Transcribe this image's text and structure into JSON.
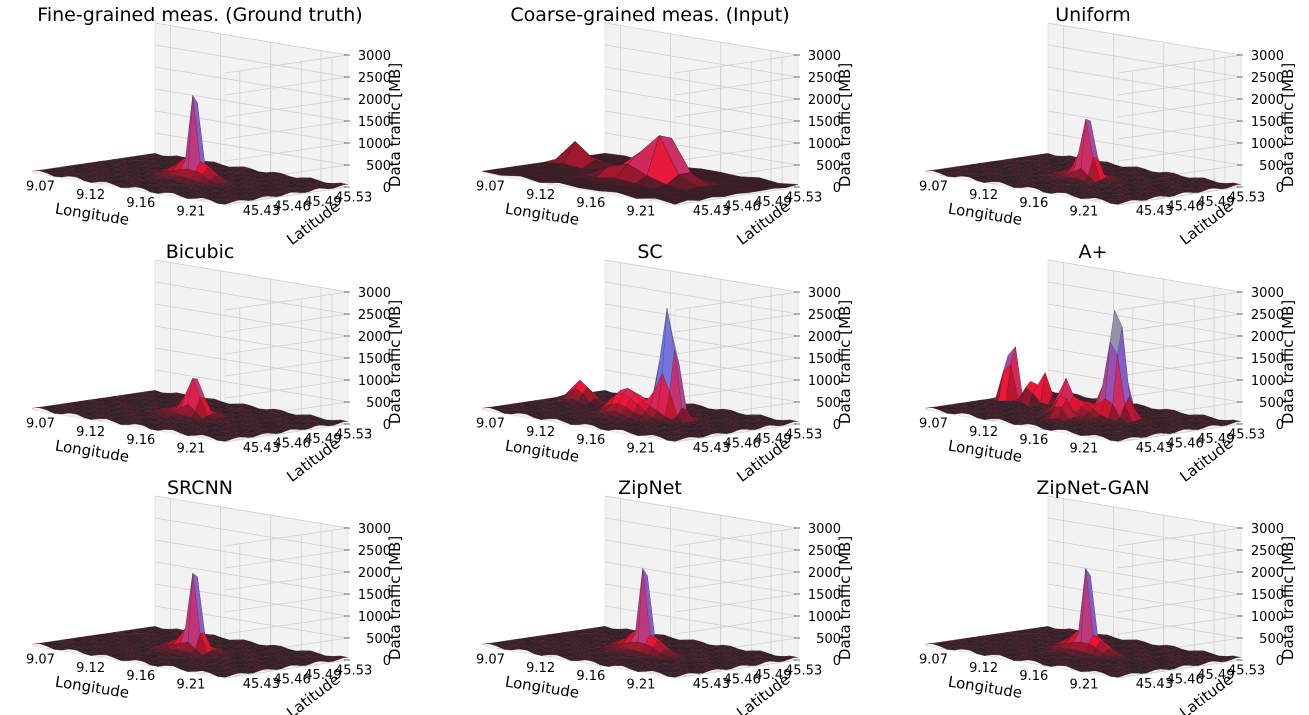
{
  "figure": {
    "zlabel": "Data traffic [MB]",
    "xlabel": "Longitude",
    "ylabel": "Latitude"
  },
  "chart_data": [
    {
      "type": "surface3d",
      "title": "Fine-grained  meas.  (Ground truth)",
      "xlabel": "Longitude",
      "ylabel": "Latitude",
      "zlabel": "Data traffic [MB]",
      "x_ticks": [
        "9.07",
        "9.12",
        "9.16",
        "9.21"
      ],
      "y_ticks": [
        "45.43",
        "45.46",
        "45.49",
        "45.53"
      ],
      "z_ticks": [
        "0",
        "500",
        "1000",
        "1500",
        "2000",
        "2500",
        "3000"
      ],
      "zlim": [
        0,
        3000
      ],
      "resolution": "fine",
      "peaks": [
        {
          "x": 0.54,
          "y": 0.48,
          "height": 3300,
          "width": 0.015
        },
        {
          "x": 0.5,
          "y": 0.5,
          "height": 450,
          "width": 0.07
        },
        {
          "x": 0.62,
          "y": 0.46,
          "height": 250,
          "width": 0.04
        }
      ]
    },
    {
      "type": "surface3d",
      "title": "Coarse-grained meas.  (Input)",
      "xlabel": "Longitude",
      "ylabel": "Latitude",
      "zlabel": "Data traffic [MB]",
      "x_ticks": [
        "9.07",
        "9.12",
        "9.16",
        "9.21"
      ],
      "y_ticks": [
        "45.43",
        "45.46",
        "45.49",
        "45.53"
      ],
      "z_ticks": [
        "0",
        "500",
        "1000",
        "1500",
        "2000",
        "2500",
        "3000"
      ],
      "zlim": [
        0,
        3000
      ],
      "resolution": "coarse",
      "peaks": [
        {
          "x": 0.6,
          "y": 0.55,
          "height": 1300,
          "width": 0.06
        },
        {
          "x": 0.12,
          "y": 0.62,
          "height": 600,
          "width": 0.05
        },
        {
          "x": 0.48,
          "y": 0.45,
          "height": 450,
          "width": 0.08
        }
      ]
    },
    {
      "type": "surface3d",
      "title": "Uniform",
      "xlabel": "Longitude",
      "ylabel": "Latitude",
      "zlabel": "Data traffic [MB]",
      "x_ticks": [
        "9.07",
        "9.12",
        "9.16",
        "9.21"
      ],
      "y_ticks": [
        "45.43",
        "45.46",
        "45.49",
        "45.53"
      ],
      "z_ticks": [
        "0",
        "500",
        "1000",
        "1500",
        "2000",
        "2500",
        "3000"
      ],
      "zlim": [
        0,
        3000
      ],
      "resolution": "fine",
      "peaks": [
        {
          "x": 0.54,
          "y": 0.48,
          "height": 1500,
          "width": 0.025
        },
        {
          "x": 0.5,
          "y": 0.5,
          "height": 300,
          "width": 0.07
        }
      ]
    },
    {
      "type": "surface3d",
      "title": "Bicubic",
      "xlabel": "Longitude",
      "ylabel": "Latitude",
      "zlabel": "Data traffic [MB]",
      "x_ticks": [
        "9.07",
        "9.12",
        "9.16",
        "9.21"
      ],
      "y_ticks": [
        "45.43",
        "45.46",
        "45.49",
        "45.53"
      ],
      "z_ticks": [
        "0",
        "500",
        "1000",
        "1500",
        "2000",
        "2500",
        "3000"
      ],
      "zlim": [
        0,
        3000
      ],
      "resolution": "fine",
      "peaks": [
        {
          "x": 0.54,
          "y": 0.48,
          "height": 800,
          "width": 0.03
        },
        {
          "x": 0.5,
          "y": 0.5,
          "height": 250,
          "width": 0.08
        }
      ]
    },
    {
      "type": "surface3d",
      "title": "SC",
      "xlabel": "Longitude",
      "ylabel": "Latitude",
      "zlabel": "Data traffic [MB]",
      "x_ticks": [
        "9.07",
        "9.12",
        "9.16",
        "9.21"
      ],
      "y_ticks": [
        "45.43",
        "45.46",
        "45.49",
        "45.53"
      ],
      "z_ticks": [
        "0",
        "500",
        "1000",
        "1500",
        "2000",
        "2500",
        "3000"
      ],
      "zlim": [
        0,
        3000
      ],
      "resolution": "fine",
      "peaks": [
        {
          "x": 0.62,
          "y": 0.55,
          "height": 2500,
          "width": 0.035
        },
        {
          "x": 0.12,
          "y": 0.62,
          "height": 500,
          "width": 0.04
        },
        {
          "x": 0.45,
          "y": 0.45,
          "height": 400,
          "width": 0.05
        },
        {
          "x": 0.5,
          "y": 0.5,
          "height": 300,
          "width": 0.09
        }
      ]
    },
    {
      "type": "surface3d",
      "title": "A+",
      "xlabel": "Longitude",
      "ylabel": "Latitude",
      "zlabel": "Data traffic [MB]",
      "x_ticks": [
        "9.07",
        "9.12",
        "9.16",
        "9.21"
      ],
      "y_ticks": [
        "45.43",
        "45.46",
        "45.49",
        "45.53"
      ],
      "z_ticks": [
        "0",
        "500",
        "1000",
        "1500",
        "2000",
        "2500",
        "3000"
      ],
      "zlim": [
        0,
        3000
      ],
      "resolution": "fine",
      "peaks": [
        {
          "x": 0.06,
          "y": 0.6,
          "height": 2300,
          "width": 0.02
        },
        {
          "x": 0.63,
          "y": 0.57,
          "height": 2600,
          "width": 0.035
        },
        {
          "x": 0.17,
          "y": 0.6,
          "height": 900,
          "width": 0.02
        },
        {
          "x": 0.24,
          "y": 0.62,
          "height": 800,
          "width": 0.02
        },
        {
          "x": 0.46,
          "y": 0.42,
          "height": 700,
          "width": 0.03
        },
        {
          "x": 0.52,
          "y": 0.3,
          "height": 600,
          "width": 0.03
        },
        {
          "x": 0.5,
          "y": 0.5,
          "height": 300,
          "width": 0.09
        }
      ]
    },
    {
      "type": "surface3d",
      "title": "SRCNN",
      "xlabel": "Longitude",
      "ylabel": "Latitude",
      "zlabel": "Data traffic [MB]",
      "x_ticks": [
        "9.07",
        "9.12",
        "9.16",
        "9.21"
      ],
      "y_ticks": [
        "45.43",
        "45.46",
        "45.49",
        "45.53"
      ],
      "z_ticks": [
        "0",
        "500",
        "1000",
        "1500",
        "2000",
        "2500",
        "3000"
      ],
      "zlim": [
        0,
        3000
      ],
      "resolution": "fine",
      "peaks": [
        {
          "x": 0.54,
          "y": 0.48,
          "height": 2300,
          "width": 0.02
        },
        {
          "x": 0.5,
          "y": 0.5,
          "height": 400,
          "width": 0.07
        }
      ]
    },
    {
      "type": "surface3d",
      "title": "ZipNet",
      "xlabel": "Longitude",
      "ylabel": "Latitude",
      "zlabel": "Data traffic [MB]",
      "x_ticks": [
        "9.07",
        "9.12",
        "9.16",
        "9.21"
      ],
      "y_ticks": [
        "45.43",
        "45.46",
        "45.49",
        "45.53"
      ],
      "z_ticks": [
        "0",
        "500",
        "1000",
        "1500",
        "2000",
        "2500",
        "3000"
      ],
      "zlim": [
        0,
        3000
      ],
      "resolution": "fine",
      "peaks": [
        {
          "x": 0.54,
          "y": 0.48,
          "height": 3300,
          "width": 0.015
        },
        {
          "x": 0.5,
          "y": 0.5,
          "height": 450,
          "width": 0.07
        },
        {
          "x": 0.62,
          "y": 0.46,
          "height": 250,
          "width": 0.04
        }
      ]
    },
    {
      "type": "surface3d",
      "title": "ZipNet-GAN",
      "xlabel": "Longitude",
      "ylabel": "Latitude",
      "zlabel": "Data traffic [MB]",
      "x_ticks": [
        "9.07",
        "9.12",
        "9.16",
        "9.21"
      ],
      "y_ticks": [
        "45.43",
        "45.46",
        "45.49",
        "45.53"
      ],
      "z_ticks": [
        "0",
        "500",
        "1000",
        "1500",
        "2000",
        "2500",
        "3000"
      ],
      "zlim": [
        0,
        3000
      ],
      "resolution": "fine",
      "peaks": [
        {
          "x": 0.54,
          "y": 0.48,
          "height": 3300,
          "width": 0.015
        },
        {
          "x": 0.5,
          "y": 0.5,
          "height": 450,
          "width": 0.07
        },
        {
          "x": 0.62,
          "y": 0.46,
          "height": 250,
          "width": 0.04
        }
      ]
    }
  ]
}
